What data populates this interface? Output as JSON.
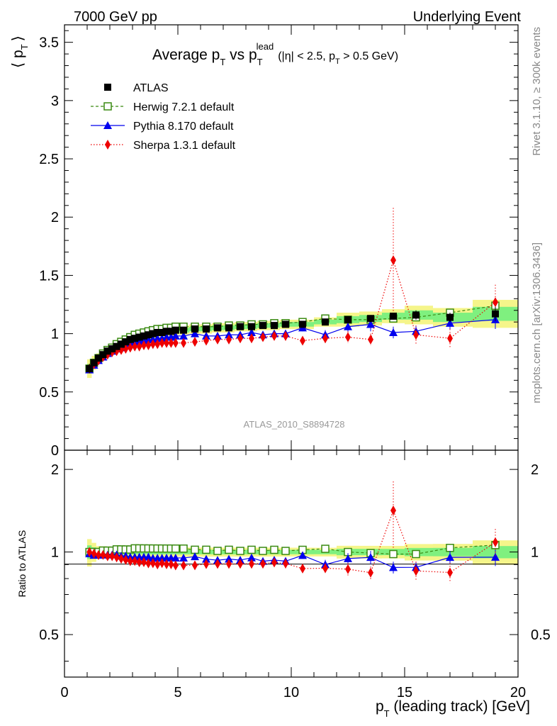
{
  "header": {
    "left": "7000 GeV pp",
    "right": "Underlying Event",
    "side_top": "Rivet 3.1.10, ≥ 300k events",
    "side_bottom": "mcplots.cern.ch [arXiv:1306.3436]",
    "watermark": "ATLAS_2010_S8894728"
  },
  "title": {
    "main": "Average p",
    "main_sub": "T",
    "vs": " vs p",
    "vs_sub": "T",
    "vs_sup": "lead",
    "cuts_a": "(|η| < 2.5, p",
    "cuts_sub": "T",
    "cuts_b": " > 0.5 GeV)"
  },
  "axes": {
    "ylabel_top": "⟨ p",
    "ylabel_top_sub": "T",
    "ylabel_top_end": "⟩",
    "ylabel_bottom": "Ratio to ATLAS",
    "xlabel": "p",
    "xlabel_sub": "T",
    "xlabel_rest": " (leading track) [GeV]",
    "top_ticks": [
      "0",
      "0.5",
      "1",
      "1.5",
      "2",
      "2.5",
      "3",
      "3.5"
    ],
    "bottom_ticks": [
      "0.5",
      "1",
      "2"
    ],
    "x_ticks": [
      "0",
      "5",
      "10",
      "15",
      "20"
    ]
  },
  "legend": [
    "ATLAS",
    "Herwig 7.2.1 default",
    "Pythia 8.170 default",
    "Sherpa 1.3.1 default"
  ],
  "colors": {
    "data": "#000000",
    "herwig": "#3a8a12",
    "pythia": "#0000ee",
    "sherpa": "#ee0000",
    "band_inner": "#7ff07f",
    "band_outer": "#f5f58a"
  },
  "chart_data": {
    "type": "scatter",
    "xlim": [
      0,
      20
    ],
    "ylim_top": [
      0,
      3.65
    ],
    "ylim_ratio": [
      0.35,
      2.35
    ],
    "log_y_ratio": true,
    "x": [
      1.1,
      1.3,
      1.5,
      1.7,
      1.9,
      2.1,
      2.3,
      2.5,
      2.7,
      2.9,
      3.1,
      3.3,
      3.5,
      3.7,
      3.9,
      4.1,
      4.3,
      4.5,
      4.7,
      4.9,
      5.25,
      5.75,
      6.25,
      6.75,
      7.25,
      7.75,
      8.25,
      8.75,
      9.25,
      9.75,
      10.5,
      11.5,
      12.5,
      13.5,
      14.5,
      15.5,
      17.0,
      19.0
    ],
    "series": [
      {
        "name": "ATLAS",
        "values": [
          0.7,
          0.75,
          0.79,
          0.82,
          0.85,
          0.87,
          0.89,
          0.91,
          0.93,
          0.95,
          0.96,
          0.97,
          0.98,
          0.99,
          1.0,
          1.01,
          1.01,
          1.02,
          1.02,
          1.03,
          1.03,
          1.04,
          1.04,
          1.05,
          1.05,
          1.06,
          1.06,
          1.07,
          1.07,
          1.08,
          1.08,
          1.1,
          1.12,
          1.13,
          1.15,
          1.16,
          1.14,
          1.17
        ],
        "errors": [
          0.04,
          0.03,
          0.02,
          0.02,
          0.02,
          0.02,
          0.02,
          0.02,
          0.02,
          0.02,
          0.02,
          0.02,
          0.02,
          0.02,
          0.02,
          0.02,
          0.02,
          0.02,
          0.02,
          0.02,
          0.02,
          0.02,
          0.02,
          0.02,
          0.02,
          0.02,
          0.02,
          0.02,
          0.02,
          0.02,
          0.02,
          0.02,
          0.03,
          0.03,
          0.03,
          0.04,
          0.04,
          0.06
        ]
      },
      {
        "name": "Herwig 7.2.1 default",
        "values": [
          0.7,
          0.75,
          0.79,
          0.83,
          0.86,
          0.88,
          0.91,
          0.93,
          0.95,
          0.97,
          0.99,
          1.0,
          1.01,
          1.02,
          1.03,
          1.04,
          1.04,
          1.05,
          1.05,
          1.06,
          1.06,
          1.06,
          1.06,
          1.06,
          1.07,
          1.07,
          1.08,
          1.08,
          1.09,
          1.09,
          1.1,
          1.13,
          1.12,
          1.12,
          1.13,
          1.14,
          1.18,
          1.24
        ],
        "errors": [
          0.01,
          0.01,
          0.01,
          0.01,
          0.01,
          0.01,
          0.01,
          0.01,
          0.01,
          0.01,
          0.01,
          0.01,
          0.01,
          0.01,
          0.01,
          0.01,
          0.01,
          0.01,
          0.01,
          0.01,
          0.01,
          0.01,
          0.01,
          0.01,
          0.01,
          0.01,
          0.01,
          0.01,
          0.01,
          0.01,
          0.01,
          0.02,
          0.02,
          0.02,
          0.03,
          0.03,
          0.03,
          0.05
        ]
      },
      {
        "name": "Pythia 8.170 default",
        "values": [
          0.69,
          0.73,
          0.77,
          0.8,
          0.83,
          0.85,
          0.87,
          0.88,
          0.9,
          0.91,
          0.92,
          0.93,
          0.94,
          0.95,
          0.95,
          0.96,
          0.96,
          0.97,
          0.97,
          0.98,
          0.98,
          1.0,
          0.98,
          0.98,
          0.99,
          0.99,
          1.01,
          0.99,
          1.0,
          1.0,
          1.05,
          0.99,
          1.06,
          1.08,
          1.01,
          1.02,
          1.09,
          1.12
        ],
        "errors": [
          0.01,
          0.01,
          0.01,
          0.01,
          0.01,
          0.01,
          0.01,
          0.01,
          0.01,
          0.01,
          0.01,
          0.01,
          0.01,
          0.01,
          0.01,
          0.01,
          0.01,
          0.01,
          0.01,
          0.01,
          0.01,
          0.02,
          0.02,
          0.02,
          0.02,
          0.02,
          0.02,
          0.02,
          0.03,
          0.03,
          0.03,
          0.04,
          0.05,
          0.06,
          0.05,
          0.05,
          0.06,
          0.08
        ]
      },
      {
        "name": "Sherpa 1.3.1 default",
        "values": [
          0.7,
          0.74,
          0.77,
          0.8,
          0.82,
          0.84,
          0.85,
          0.86,
          0.87,
          0.88,
          0.89,
          0.89,
          0.9,
          0.9,
          0.91,
          0.91,
          0.92,
          0.92,
          0.92,
          0.92,
          0.92,
          0.93,
          0.94,
          0.95,
          0.95,
          0.96,
          0.96,
          0.97,
          0.98,
          0.98,
          0.94,
          0.96,
          0.97,
          0.95,
          1.63,
          0.99,
          0.96,
          1.27
        ],
        "errors": [
          0.01,
          0.01,
          0.01,
          0.01,
          0.01,
          0.01,
          0.01,
          0.01,
          0.01,
          0.01,
          0.01,
          0.01,
          0.01,
          0.01,
          0.01,
          0.01,
          0.01,
          0.01,
          0.01,
          0.01,
          0.02,
          0.02,
          0.02,
          0.02,
          0.02,
          0.03,
          0.03,
          0.03,
          0.03,
          0.04,
          0.03,
          0.04,
          0.05,
          0.05,
          0.45,
          0.08,
          0.08,
          0.15
        ]
      }
    ]
  }
}
